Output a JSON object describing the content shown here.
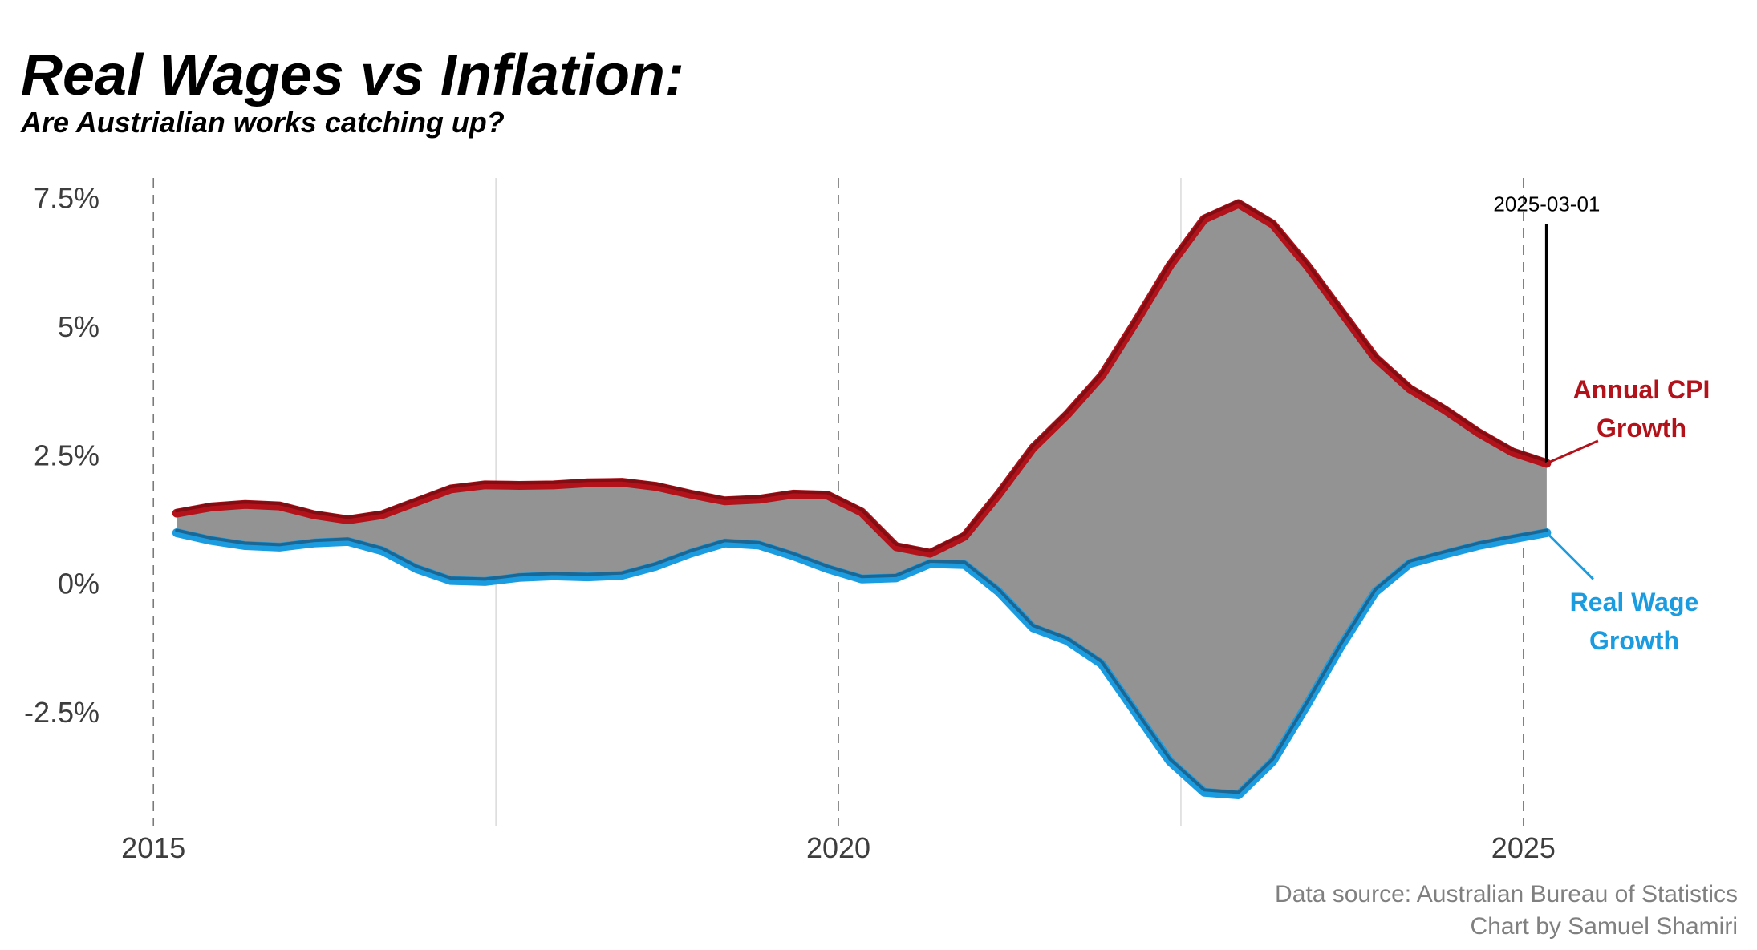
{
  "title": "Real Wages vs Inflation:",
  "subtitle": "Are Austrialian works catching up?",
  "caption": {
    "source": "Data source: Australian Bureau of Statistics",
    "author": "Chart by Samuel Shamiri"
  },
  "colors": {
    "cpi": "#b3121a",
    "wage": "#1b9ce0",
    "band": "#939393",
    "vline": "#000000"
  },
  "chart_data": {
    "type": "area",
    "title": "Real Wages vs Inflation:",
    "subtitle": "Are Austrialian works catching up?",
    "xlabel": "",
    "ylabel": "",
    "xlim": [
      2014.7,
      2026.5
    ],
    "ylim": [
      -4.7,
      7.9
    ],
    "x_ticks": [
      2015,
      2020,
      2025
    ],
    "x_tick_labels": [
      "2015",
      "2020",
      "2025"
    ],
    "y_ticks": [
      -2.5,
      0,
      2.5,
      5,
      7.5
    ],
    "y_tick_labels": [
      "-2.5%",
      "0%",
      "2.5%",
      "5%",
      "7.5%"
    ],
    "grid": true,
    "annotation": {
      "x": 2025.17,
      "label": "2025-03-01",
      "y_top": 7.0,
      "y_bottom": 2.35
    },
    "x": [
      2015.17,
      2015.42,
      2015.67,
      2015.92,
      2016.17,
      2016.42,
      2016.67,
      2016.92,
      2017.17,
      2017.42,
      2017.67,
      2017.92,
      2018.17,
      2018.42,
      2018.67,
      2018.92,
      2019.17,
      2019.42,
      2019.67,
      2019.92,
      2020.17,
      2020.42,
      2020.67,
      2020.92,
      2021.17,
      2021.42,
      2021.67,
      2021.92,
      2022.17,
      2022.42,
      2022.67,
      2022.92,
      2023.17,
      2023.42,
      2023.67,
      2023.92,
      2024.17,
      2024.42,
      2024.67,
      2024.92,
      2025.17
    ],
    "series": [
      {
        "name": "Annual CPI Growth",
        "values": [
          1.38,
          1.5,
          1.55,
          1.52,
          1.35,
          1.25,
          1.35,
          1.6,
          1.85,
          1.93,
          1.92,
          1.93,
          1.97,
          1.98,
          1.9,
          1.75,
          1.62,
          1.65,
          1.75,
          1.73,
          1.4,
          0.73,
          0.6,
          0.93,
          1.75,
          2.65,
          3.3,
          4.05,
          5.1,
          6.2,
          7.1,
          7.4,
          7.0,
          6.2,
          5.3,
          4.4,
          3.8,
          3.4,
          2.95,
          2.57,
          2.35
        ]
      },
      {
        "name": "Real Wage Growth",
        "values": [
          1.0,
          0.85,
          0.75,
          0.72,
          0.8,
          0.83,
          0.65,
          0.3,
          0.07,
          0.05,
          0.13,
          0.16,
          0.14,
          0.17,
          0.35,
          0.6,
          0.8,
          0.76,
          0.55,
          0.3,
          0.1,
          0.12,
          0.4,
          0.38,
          -0.15,
          -0.85,
          -1.1,
          -1.55,
          -2.5,
          -3.45,
          -4.05,
          -4.1,
          -3.45,
          -2.35,
          -1.2,
          -0.15,
          0.4,
          0.58,
          0.75,
          0.88,
          1.0
        ]
      }
    ],
    "labels": [
      {
        "series": "Annual CPI Growth",
        "lines": [
          "Annual CPI",
          "Growth"
        ]
      },
      {
        "series": "Real Wage Growth",
        "lines": [
          "Real Wage",
          "Growth"
        ]
      }
    ]
  }
}
